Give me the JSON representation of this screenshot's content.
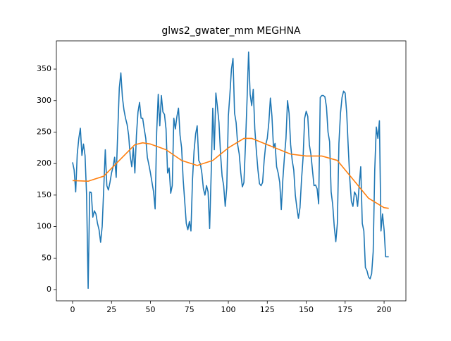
{
  "chart_data": {
    "type": "line",
    "title": "glws2_gwater_mm MEGHNA",
    "xlim": [
      -10.4,
      214
    ],
    "ylim": [
      -17.9,
      394.8
    ],
    "xticks": [
      0,
      25,
      50,
      75,
      100,
      125,
      150,
      175,
      200
    ],
    "yticks": [
      0,
      50,
      100,
      150,
      200,
      250,
      300,
      350
    ],
    "series": [
      {
        "color": "#1f77b4",
        "x": [
          0,
          1,
          2,
          3,
          4,
          5,
          6,
          7,
          8,
          9,
          10,
          11,
          12,
          13,
          14,
          15,
          16,
          17,
          18,
          19,
          20,
          21,
          22,
          23,
          24,
          25,
          26,
          27,
          28,
          29,
          30,
          31,
          32,
          33,
          34,
          35,
          36,
          37,
          38,
          39,
          40,
          41,
          42,
          43,
          44,
          45,
          46,
          47,
          48,
          49,
          50,
          51,
          52,
          53,
          54,
          55,
          56,
          57,
          58,
          59,
          60,
          61,
          62,
          63,
          64,
          65,
          66,
          67,
          68,
          69,
          70,
          71,
          72,
          73,
          74,
          75,
          76,
          77,
          78,
          79,
          80,
          81,
          82,
          83,
          84,
          85,
          86,
          87,
          88,
          89,
          90,
          91,
          92,
          93,
          94,
          95,
          96,
          97,
          98,
          99,
          100,
          101,
          102,
          103,
          104,
          105,
          106,
          107,
          108,
          109,
          110,
          111,
          112,
          113,
          114,
          115,
          116,
          117,
          118,
          119,
          120,
          121,
          122,
          123,
          124,
          125,
          126,
          127,
          128,
          129,
          130,
          131,
          132,
          133,
          134,
          135,
          136,
          137,
          138,
          139,
          140,
          141,
          142,
          143,
          144,
          145,
          146,
          147,
          148,
          149,
          150,
          151,
          152,
          153,
          154,
          155,
          156,
          157,
          158,
          159,
          160,
          161,
          162,
          163,
          164,
          165,
          166,
          167,
          168,
          169,
          170,
          171,
          172,
          173,
          174,
          175,
          176,
          177,
          178,
          179,
          180,
          181,
          182,
          183,
          184,
          185,
          186,
          187,
          188,
          189,
          190,
          191,
          192,
          193,
          194,
          195,
          196,
          197,
          198,
          199,
          200,
          201,
          202,
          203
        ],
        "values": [
          202,
          190,
          155,
          215,
          240,
          256,
          213,
          231,
          213,
          150,
          2,
          155,
          154,
          115,
          125,
          120,
          105,
          95,
          75,
          100,
          160,
          222,
          165,
          158,
          170,
          185,
          195,
          210,
          178,
          250,
          320,
          344,
          305,
          285,
          272,
          262,
          245,
          212,
          195,
          225,
          185,
          245,
          282,
          297,
          272,
          272,
          255,
          240,
          210,
          198,
          185,
          170,
          155,
          128,
          250,
          310,
          260,
          308,
          282,
          278,
          255,
          185,
          193,
          153,
          165,
          272,
          255,
          275,
          288,
          245,
          225,
          175,
          140,
          105,
          95,
          108,
          93,
          175,
          220,
          247,
          260,
          205,
          200,
          185,
          160,
          150,
          165,
          155,
          97,
          185,
          288,
          222,
          312,
          290,
          265,
          215,
          180,
          165,
          132,
          162,
          275,
          310,
          350,
          367,
          280,
          265,
          230,
          215,
          185,
          163,
          170,
          230,
          300,
          377,
          310,
          292,
          318,
          255,
          220,
          190,
          168,
          165,
          170,
          205,
          230,
          240,
          265,
          304,
          275,
          225,
          232,
          195,
          185,
          170,
          127,
          175,
          210,
          240,
          300,
          280,
          230,
          205,
          190,
          150,
          130,
          113,
          130,
          175,
          210,
          272,
          283,
          275,
          230,
          215,
          190,
          165,
          166,
          160,
          136,
          305,
          308,
          308,
          306,
          290,
          250,
          235,
          155,
          135,
          100,
          76,
          105,
          232,
          280,
          305,
          315,
          312,
          280,
          225,
          175,
          140,
          132,
          155,
          150,
          132,
          165,
          195,
          105,
          93,
          35,
          30,
          20,
          17,
          25,
          60,
          190,
          258,
          240,
          268,
          93,
          120,
          95,
          52,
          52,
          52
        ]
      },
      {
        "color": "#ff7f0e",
        "x": [
          0,
          10,
          20,
          30,
          40,
          45,
          50,
          60,
          70,
          80,
          90,
          100,
          110,
          115,
          120,
          130,
          140,
          150,
          160,
          170,
          180,
          190,
          200,
          203
        ],
        "values": [
          173,
          172,
          180,
          205,
          230,
          233,
          231,
          222,
          205,
          197,
          205,
          225,
          240,
          240,
          235,
          225,
          215,
          212,
          212,
          205,
          175,
          145,
          130,
          129
        ]
      }
    ]
  }
}
